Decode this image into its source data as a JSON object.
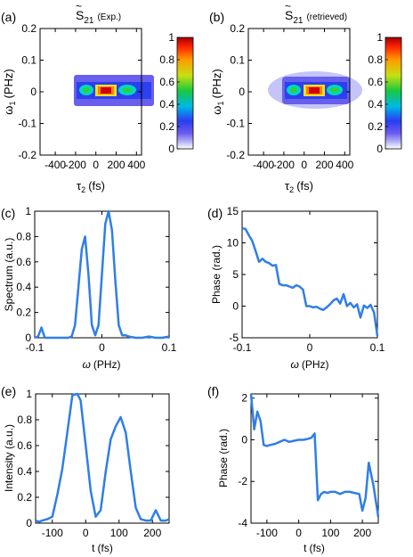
{
  "chart_data": [
    {
      "id": "a",
      "type": "heatmap",
      "panel_label": "(a)",
      "title_main": "S",
      "title_sub": "21",
      "title_tilde": "~",
      "title_note": "(Exp.)",
      "xlabel_main": "τ",
      "xlabel_sub": "2",
      "xlabel_unit": "(fs)",
      "ylabel_main": "ω",
      "ylabel_sub": "1",
      "ylabel_unit": "(PHz)",
      "xlim": [
        -550,
        450
      ],
      "ylim": [
        -0.2,
        0.2
      ],
      "xticks": [
        -400,
        -200,
        0,
        200,
        400
      ],
      "yticks": [
        -0.2,
        -0.1,
        0,
        0.1,
        0.2
      ],
      "colorbar": {
        "ticks": [
          0,
          0.2,
          0.4,
          0.6,
          0.8,
          1
        ],
        "range": [
          0,
          1
        ],
        "colormap": "jet-white"
      },
      "grid": false
    },
    {
      "id": "b",
      "type": "heatmap",
      "panel_label": "(b)",
      "title_main": "S",
      "title_sub": "21",
      "title_tilde": "~",
      "title_note": "(retrieved)",
      "xlabel_main": "τ",
      "xlabel_sub": "2",
      "xlabel_unit": "(fs)",
      "ylabel_main": "ω",
      "ylabel_sub": "1",
      "ylabel_unit": "(PHz)",
      "xlim": [
        -550,
        450
      ],
      "ylim": [
        -0.2,
        0.2
      ],
      "xticks": [
        -400,
        -200,
        0,
        200,
        400
      ],
      "yticks": [
        -0.2,
        -0.1,
        0,
        0.1,
        0.2
      ],
      "colorbar": {
        "ticks": [
          0,
          0.2,
          0.4,
          0.6,
          0.8,
          1
        ],
        "range": [
          0,
          1
        ],
        "colormap": "jet-white"
      },
      "grid": false
    },
    {
      "id": "c",
      "type": "line",
      "panel_label": "(c)",
      "xlabel_main": "ω",
      "xlabel_unit": "(PHz)",
      "ylabel": "Spectrum (a.u.)",
      "xlim": [
        -0.1,
        0.1
      ],
      "ylim": [
        0,
        1
      ],
      "xticks": [
        -0.1,
        0,
        0.1
      ],
      "yticks": [
        0,
        0.2,
        0.4,
        0.6,
        0.8,
        1
      ],
      "color": "#2f7ee8",
      "grid": false,
      "x": [
        -0.1,
        -0.095,
        -0.09,
        -0.085,
        -0.08,
        -0.07,
        -0.06,
        -0.05,
        -0.045,
        -0.04,
        -0.035,
        -0.03,
        -0.025,
        -0.02,
        -0.015,
        -0.01,
        -0.005,
        0.0,
        0.005,
        0.01,
        0.015,
        0.02,
        0.025,
        0.03,
        0.035,
        0.04,
        0.05,
        0.06,
        0.07,
        0.08,
        0.09,
        0.1
      ],
      "y": [
        0.0,
        0.01,
        0.08,
        0.0,
        0.0,
        0.0,
        0.0,
        0.0,
        0.01,
        0.1,
        0.4,
        0.7,
        0.8,
        0.5,
        0.1,
        0.02,
        0.1,
        0.5,
        0.9,
        1.0,
        0.85,
        0.45,
        0.1,
        0.02,
        0.02,
        0.01,
        0.0,
        0.0,
        0.01,
        0.0,
        0.0,
        0.01
      ]
    },
    {
      "id": "d",
      "type": "line",
      "panel_label": "(d)",
      "xlabel_main": "ω",
      "xlabel_unit": "(PHz)",
      "ylabel": "Phase (rad.)",
      "xlim": [
        -0.1,
        0.1
      ],
      "ylim": [
        -5,
        15
      ],
      "xticks": [
        -0.1,
        0,
        0.1
      ],
      "yticks": [
        -5,
        0,
        5,
        10,
        15
      ],
      "color": "#2f7ee8",
      "grid": false,
      "x": [
        -0.1,
        -0.095,
        -0.09,
        -0.085,
        -0.08,
        -0.075,
        -0.07,
        -0.065,
        -0.06,
        -0.055,
        -0.05,
        -0.045,
        -0.04,
        -0.035,
        -0.03,
        -0.025,
        -0.02,
        -0.015,
        -0.01,
        -0.005,
        0.0,
        0.005,
        0.01,
        0.015,
        0.02,
        0.025,
        0.03,
        0.035,
        0.04,
        0.045,
        0.05,
        0.055,
        0.06,
        0.065,
        0.07,
        0.075,
        0.08,
        0.085,
        0.09,
        0.095,
        0.1
      ],
      "y": [
        12.3,
        12.2,
        11.2,
        10.3,
        8.7,
        7.0,
        7.5,
        7.0,
        6.8,
        6.4,
        6.5,
        3.5,
        3.3,
        3.3,
        3.1,
        2.9,
        3.3,
        3.1,
        2.6,
        0.0,
        0.0,
        -0.2,
        -0.1,
        -0.4,
        -0.6,
        -0.2,
        0.3,
        0.9,
        1.2,
        0.4,
        1.9,
        0.0,
        0.5,
        -0.2,
        0.3,
        -1.8,
        0.1,
        -0.3,
        0.2,
        -1.0,
        -4.7
      ]
    },
    {
      "id": "e",
      "type": "line",
      "panel_label": "(e)",
      "xlabel_main": "t",
      "xlabel_unit": "(fs)",
      "ylabel": "Intensity (a.u.)",
      "xlim": [
        -150,
        250
      ],
      "ylim": [
        0,
        1
      ],
      "xticks": [
        -100,
        0,
        100,
        200
      ],
      "yticks": [
        0,
        0.2,
        0.4,
        0.6,
        0.8,
        1
      ],
      "color": "#2f7ee8",
      "grid": false,
      "x": [
        -150,
        -140,
        -130,
        -115,
        -100,
        -85,
        -70,
        -55,
        -40,
        -25,
        -15,
        0,
        15,
        30,
        45,
        60,
        75,
        90,
        105,
        120,
        135,
        150,
        165,
        180,
        195,
        210,
        225,
        240,
        250
      ],
      "y": [
        0.02,
        0.01,
        0.02,
        0.03,
        0.05,
        0.22,
        0.42,
        0.7,
        0.99,
        1.0,
        0.95,
        0.6,
        0.25,
        0.05,
        0.1,
        0.4,
        0.65,
        0.75,
        0.82,
        0.7,
        0.4,
        0.12,
        0.03,
        0.02,
        0.02,
        0.1,
        0.02,
        0.02,
        0.03
      ]
    },
    {
      "id": "f",
      "type": "line",
      "panel_label": "(f)",
      "xlabel_main": "t",
      "xlabel_unit": "(fs)",
      "ylabel": "Phase (rad.)",
      "xlim": [
        -150,
        250
      ],
      "ylim": [
        -4,
        2.2
      ],
      "xticks": [
        -100,
        0,
        100,
        200
      ],
      "yticks": [
        -4,
        -2,
        0,
        2
      ],
      "color": "#2f7ee8",
      "grid": false,
      "x": [
        -150,
        -140,
        -130,
        -120,
        -110,
        -100,
        -90,
        -75,
        -60,
        -45,
        -30,
        -15,
        0,
        15,
        30,
        40,
        45,
        50,
        60,
        70,
        80,
        90,
        100,
        115,
        130,
        145,
        160,
        175,
        190,
        200,
        210,
        220,
        235,
        250
      ],
      "y": [
        2.2,
        0.5,
        1.35,
        0.9,
        -0.25,
        -0.3,
        -0.25,
        -0.2,
        -0.1,
        0.0,
        -0.1,
        -0.05,
        0.0,
        0.0,
        0.05,
        0.1,
        0.2,
        0.3,
        -2.9,
        -2.6,
        -2.5,
        -2.55,
        -2.5,
        -2.5,
        -2.6,
        -2.5,
        -2.5,
        -2.55,
        -2.6,
        -3.4,
        -2.8,
        -1.1,
        -2.2,
        -3.7
      ]
    }
  ]
}
